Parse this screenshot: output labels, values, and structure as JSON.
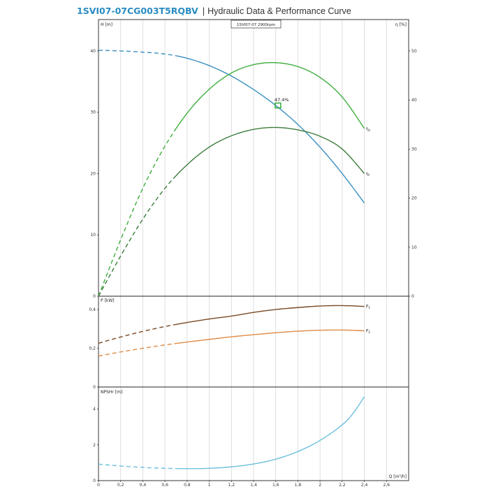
{
  "header": {
    "model": "1SVI07-07CG003T5RQBV",
    "separator": "|",
    "title": "Hydraulic Data & Performance Curve"
  },
  "chart_data": [
    {
      "id": "head",
      "type": "line",
      "speed_label": "1SVI07-07 2900rpm",
      "ylabel": "H [m]",
      "ylabel_right": "η [%]",
      "ylim": [
        0,
        45
      ],
      "yticks": [
        0,
        10,
        20,
        30,
        40
      ],
      "ylim_right": [
        0,
        56.25
      ],
      "yticks_right": [
        0,
        10,
        20,
        30,
        40,
        50
      ],
      "bep_label": "47.4%",
      "bep": {
        "x": 1.62,
        "y": 31.1
      },
      "series": [
        {
          "key": "H",
          "color": "#3a8fc0",
          "dash_until": 0.7,
          "x": [
            0,
            0.2,
            0.4,
            0.6,
            0.8,
            1.0,
            1.2,
            1.4,
            1.6,
            1.8,
            2.0,
            2.2,
            2.4
          ],
          "y": [
            40.1,
            40.0,
            39.8,
            39.5,
            38.8,
            37.6,
            35.9,
            33.7,
            31.1,
            28.0,
            24.3,
            20.0,
            15.2
          ]
        },
        {
          "name": "η",
          "subscript": "p",
          "color": "#3fae3f",
          "axis": "right",
          "dash_until": 0.7,
          "x": [
            0,
            0.2,
            0.4,
            0.6,
            0.8,
            1.0,
            1.2,
            1.4,
            1.6,
            1.8,
            2.0,
            2.2,
            2.4
          ],
          "y": [
            0,
            11.5,
            22.0,
            30.6,
            37.3,
            42.2,
            45.5,
            47.2,
            47.6,
            46.8,
            44.6,
            40.6,
            34.2
          ]
        },
        {
          "name": "η",
          "subscript": "t",
          "color": "#3d7d3d",
          "axis": "right",
          "dash_until": 0.7,
          "x": [
            0,
            0.2,
            0.4,
            0.6,
            0.8,
            1.0,
            1.2,
            1.4,
            1.6,
            1.8,
            2.0,
            2.2,
            2.4
          ],
          "y": [
            0,
            8.2,
            15.7,
            22.0,
            26.8,
            30.4,
            32.7,
            34.0,
            34.4,
            33.9,
            32.6,
            30.0,
            25.0
          ]
        }
      ]
    },
    {
      "id": "power",
      "type": "line",
      "ylabel": "P [kW]",
      "ylim": [
        0,
        0.465
      ],
      "yticks": [
        0,
        0.2,
        0.4
      ],
      "ytick_labels": [
        "0",
        "0,2",
        "0,4"
      ],
      "series": [
        {
          "name": "P",
          "subscript": "1",
          "color": "#7a4a25",
          "dash_until": 0.7,
          "x": [
            0,
            0.2,
            0.4,
            0.6,
            0.8,
            1.0,
            1.2,
            1.4,
            1.6,
            1.8,
            2.0,
            2.2,
            2.4
          ],
          "y": [
            0.226,
            0.258,
            0.287,
            0.312,
            0.333,
            0.351,
            0.366,
            0.385,
            0.4,
            0.41,
            0.418,
            0.42,
            0.416
          ]
        },
        {
          "name": "P",
          "subscript": "2",
          "color": "#e08a45",
          "dash_until": 0.7,
          "x": [
            0,
            0.2,
            0.4,
            0.6,
            0.8,
            1.0,
            1.2,
            1.4,
            1.6,
            1.8,
            2.0,
            2.2,
            2.4
          ],
          "y": [
            0.16,
            0.181,
            0.2,
            0.217,
            0.232,
            0.246,
            0.259,
            0.27,
            0.28,
            0.288,
            0.293,
            0.294,
            0.29
          ]
        }
      ]
    },
    {
      "id": "npsh",
      "type": "line",
      "ylabel": "NPSHr [m]",
      "xlabel": "Q [m³/h]",
      "ylim": [
        0,
        5.2
      ],
      "yticks": [
        0,
        2,
        4
      ],
      "xlim": [
        0,
        2.8
      ],
      "xticks": [
        0,
        0.2,
        0.4,
        0.6,
        0.8,
        1.0,
        1.2,
        1.4,
        1.6,
        1.8,
        2.0,
        2.2,
        2.4,
        2.6
      ],
      "xtick_labels": [
        "0",
        "0,2",
        "0,4",
        "0,6",
        "0,8",
        "1",
        "1,2",
        "1,4",
        "1,6",
        "1,8",
        "2",
        "2,2",
        "2,4",
        "2,6"
      ],
      "series": [
        {
          "key": "NPSHr",
          "color": "#6cc0dc",
          "dash_until": 0.7,
          "x": [
            0,
            0.2,
            0.4,
            0.6,
            0.8,
            1.0,
            1.2,
            1.4,
            1.6,
            1.8,
            2.0,
            2.2,
            2.3,
            2.4
          ],
          "y": [
            0.92,
            0.82,
            0.74,
            0.69,
            0.67,
            0.69,
            0.77,
            0.93,
            1.2,
            1.63,
            2.25,
            3.12,
            3.78,
            4.7
          ]
        }
      ]
    }
  ]
}
